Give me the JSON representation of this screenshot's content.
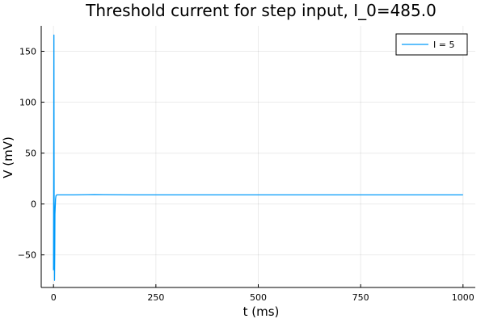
{
  "chart_data": {
    "type": "line",
    "title": "Threshold current for step input, I_0=485.0",
    "xlabel": "t (ms)",
    "ylabel": "V (mV)",
    "xlim": [
      -30,
      1030
    ],
    "ylim": [
      -82,
      175
    ],
    "xticks": [
      0,
      250,
      500,
      750,
      1000
    ],
    "xtick_labels": [
      "0",
      "250",
      "500",
      "750",
      "1000"
    ],
    "yticks": [
      -50,
      0,
      50,
      100,
      150
    ],
    "ytick_labels": [
      "−50",
      "0",
      "50",
      "100",
      "150"
    ],
    "grid": true,
    "legend_position": "top-right",
    "series": [
      {
        "name": "I = 5",
        "color": "#009AFA",
        "x": [
          0,
          0.5,
          0.8,
          1.0,
          1.2,
          1.5,
          2.0,
          2.5,
          3.0,
          3.5,
          4.0,
          5.0,
          6.0,
          8.0,
          10.0,
          20.0,
          50.0,
          100.0,
          200.0,
          400.0,
          600.0,
          800.0,
          1000.0
        ],
        "y": [
          -65,
          30,
          120,
          166,
          90,
          10,
          -40,
          -75,
          -50,
          -10,
          -5,
          5,
          8,
          9,
          9,
          9,
          9,
          9.3,
          9,
          9,
          9,
          9,
          9
        ]
      }
    ]
  }
}
